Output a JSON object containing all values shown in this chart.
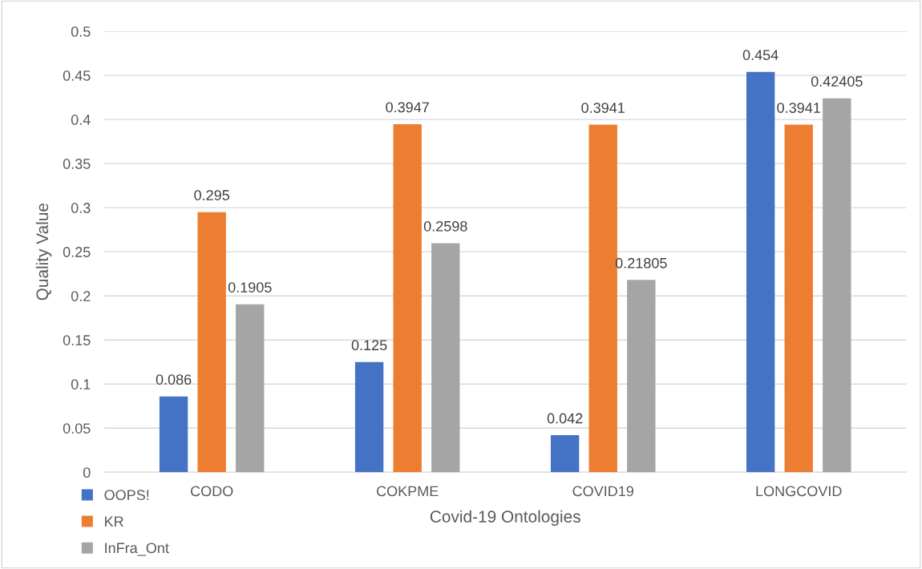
{
  "chart_data": {
    "type": "bar",
    "xlabel": "Covid-19 Ontologies",
    "ylabel": "Quality Value",
    "categories": [
      "CODO",
      "COKPME",
      "COVID19",
      "LONGCOVID"
    ],
    "series": [
      {
        "name": "OOPS!",
        "color": "#4472c4",
        "values": [
          0.086,
          0.125,
          0.042,
          0.454
        ]
      },
      {
        "name": "KR",
        "color": "#ed7d31",
        "values": [
          0.295,
          0.3947,
          0.3941,
          0.3941
        ]
      },
      {
        "name": "InFra_Ont",
        "color": "#a5a5a5",
        "values": [
          0.1905,
          0.2598,
          0.21805,
          0.42405
        ]
      }
    ],
    "ylim": [
      0,
      0.5
    ],
    "yticks": [
      0,
      0.05,
      0.1,
      0.15,
      0.2,
      0.25,
      0.3,
      0.35,
      0.4,
      0.45,
      0.5
    ],
    "grid": "y",
    "legend": "bottom left",
    "data_labels": true
  }
}
